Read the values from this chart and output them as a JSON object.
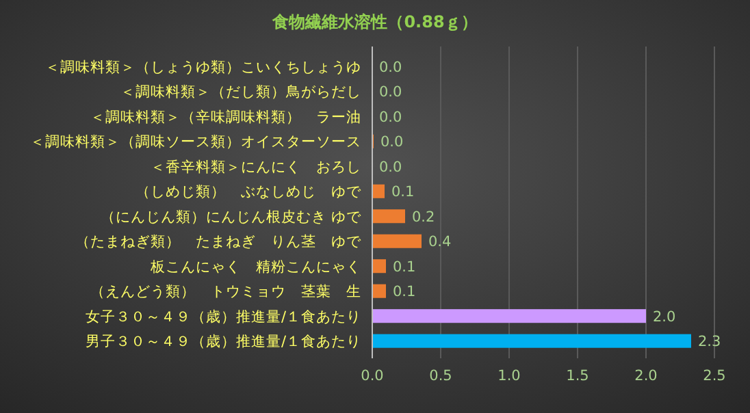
{
  "chart_data": {
    "type": "bar",
    "orientation": "horizontal",
    "title": "食物繊維水溶性（0.88ｇ）",
    "categories": [
      "＜調味料類＞（しょうゆ類）こいくちしょうゆ",
      "＜調味料類＞（だし類）鳥がらだし",
      "＜調味料類＞（辛味調味料類）　ラー油",
      "＜調味料類＞（調味ソース類）オイスターソース",
      "＜香辛料類＞にんにく　おろし",
      "（しめじ類）　ぶなしめじ　ゆで",
      "（にんじん類）にんじん根皮むき ゆで",
      "（たまねぎ類）　たまねぎ　りん茎　ゆで",
      "板こんにゃく　精粉こんにゃく",
      "（えんどう類）　トウミョウ　茎葉　生",
      "女子３０～４９（歳）推進量/１食あたり",
      "男子３０～４９（歳）推進量/１食あたり"
    ],
    "values": [
      0,
      0,
      0,
      0.01,
      0,
      0.09,
      0.24,
      0.36,
      0.1,
      0.1,
      2.0,
      2.33
    ],
    "value_labels": [
      "0.0",
      "0.0",
      "0.0",
      "0.0",
      "0.0",
      "0.1",
      "0.2",
      "0.4",
      "0.1",
      "0.1",
      "2.0",
      "2.3"
    ],
    "colors": [
      "#ed7d31",
      "#ed7d31",
      "#ed7d31",
      "#ed7d31",
      "#ed7d31",
      "#ed7d31",
      "#ed7d31",
      "#ed7d31",
      "#ed7d31",
      "#ed7d31",
      "#cc99ff",
      "#00b0f0"
    ],
    "xlim": [
      0,
      2.5
    ],
    "xticks": [
      {
        "value": 0,
        "label": "0.0"
      },
      {
        "value": 0.5,
        "label": "0.5"
      },
      {
        "value": 1,
        "label": "1.0"
      },
      {
        "value": 1.5,
        "label": "1.5"
      },
      {
        "value": 2,
        "label": "2.0"
      },
      {
        "value": 2.5,
        "label": "2.5"
      }
    ],
    "grid": "x"
  }
}
